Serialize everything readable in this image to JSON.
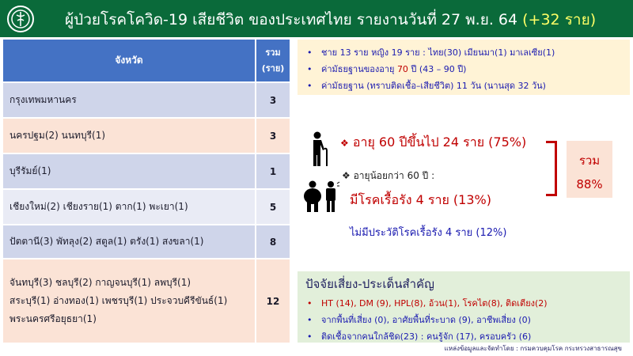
{
  "title": {
    "main": "ผู้ป่วยโรคโควิด-19 เสียชีวิต ของประเทศไทย รายงานวันที่ 27 พ.ย. 64",
    "highlight": "(+32 ราย)"
  },
  "table": {
    "headers": {
      "province": "จังหวัด",
      "total": "รวม",
      "unit": "(ราย)"
    },
    "rows": [
      {
        "provinces": "กรุงเทพมหานคร",
        "count": "3"
      },
      {
        "provinces": "นครปฐม(2) นนทบุรี(1)",
        "count": "3"
      },
      {
        "provinces": "บุรีรัมย์(1)",
        "count": "1"
      },
      {
        "provinces": "เชียงใหม่(2) เชียงราย(1) ตาก(1) พะเยา(1)",
        "count": "5"
      },
      {
        "provinces": "ปัตตานี(3) พัทลุง(2) สตูล(1) ตรัง(1) สงขลา(1)",
        "count": "8"
      },
      {
        "provinces_lines": [
          "จันทบุรี(3) ชลบุรี(2) กาญจนบุรี(1) ลพบุรี(1)",
          "สระบุรี(1) อ่างทอง(1) เพชรบุรี(1) ประจวบคีรีขันธ์(1)",
          "พระนครศรีอยุธยา(1)"
        ],
        "count": "12"
      }
    ]
  },
  "summary": {
    "line1": "ชาย 13 ราย หญิง 19 ราย : ไทย(30) เมียนมา(1) มาเลเซีย(1)",
    "line2_prefix": "ค่ามัธยฐานของอายุ ",
    "line2_value": "70",
    "line2_suffix": " ปี (43 – 90 ปี)",
    "line3": "ค่ามัธยฐาน (ทราบติดเชื้อ–เสียชีวิต) 11 วัน (นานสุด 32 วัน)"
  },
  "age": {
    "over60": "อายุ 60 ปีขึ้นไป 24 ราย (75%)",
    "under60": "อายุน้อยกว่า 60 ปี :",
    "chronic": "มีโรคเรื้อรัง 4 ราย (13%)",
    "no_chronic": "ไม่มีประวัติโรคเรื้อรัง 4 ราย (12%)",
    "total_label": "รวม",
    "total_value": "88%",
    "bullet": "❖"
  },
  "risk": {
    "heading": "ปัจจัยเสี่ยง-ประเด็นสำคัญ",
    "items": [
      "HT (14), DM (9), HPL(8), อ้วน(1), โรคไต(8), ติดเตียง(2)",
      "จากพื้นที่เสี่ยง (0), อาศัยพื้นที่ระบาด (9), อาชีพเสี่ยง (0)",
      "ติดเชื้อจากคนใกล้ชิด(23) : คนรู้จัก (17), ครอบครัว (6)"
    ]
  },
  "source": "แหล่งข้อมูลและจัดทำโดย : กรมควบคุมโรค กระทรวงสาธารณสุข",
  "colors": {
    "header_green": "#0a6a3a",
    "table_header": "#4472c4",
    "accent_red": "#c00000",
    "text_blue": "#1a1ab0"
  },
  "icons": [
    "ddc-logo",
    "elderly-cane-icon",
    "obese-person-icon",
    "sick-person-icon"
  ]
}
